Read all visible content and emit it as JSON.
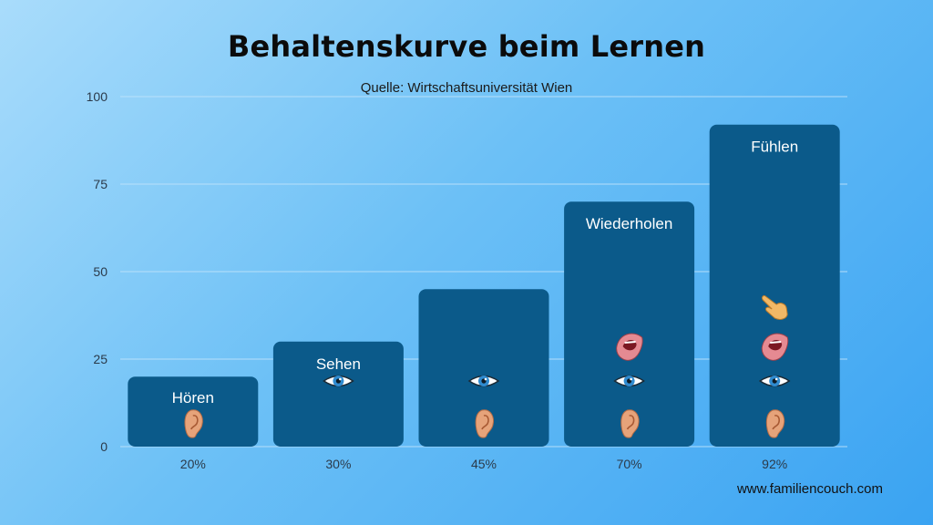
{
  "chart_data": {
    "type": "bar",
    "title": "Behaltenskurve beim Lernen",
    "subtitle": "Quelle: Wirtschaftsuniversität Wien",
    "categories": [
      "20%",
      "30%",
      "45%",
      "70%",
      "92%"
    ],
    "values": [
      20,
      30,
      45,
      70,
      92
    ],
    "bar_labels": [
      "Hören",
      "Sehen",
      "",
      "Wiederholen",
      "Fühlen"
    ],
    "bar_icons": [
      [
        "ear-icon"
      ],
      [
        "eye-icon"
      ],
      [
        "ear-icon",
        "eye-icon"
      ],
      [
        "ear-icon",
        "eye-icon",
        "mouth-icon"
      ],
      [
        "ear-icon",
        "eye-icon",
        "mouth-icon",
        "hand-icon"
      ]
    ],
    "yticks": [
      "0",
      "25",
      "50",
      "75",
      "100"
    ],
    "ylim": [
      0,
      100
    ],
    "grid": true,
    "bar_color": "#0b5a8a"
  },
  "footer": {
    "source": "www.familiencouch.com"
  }
}
